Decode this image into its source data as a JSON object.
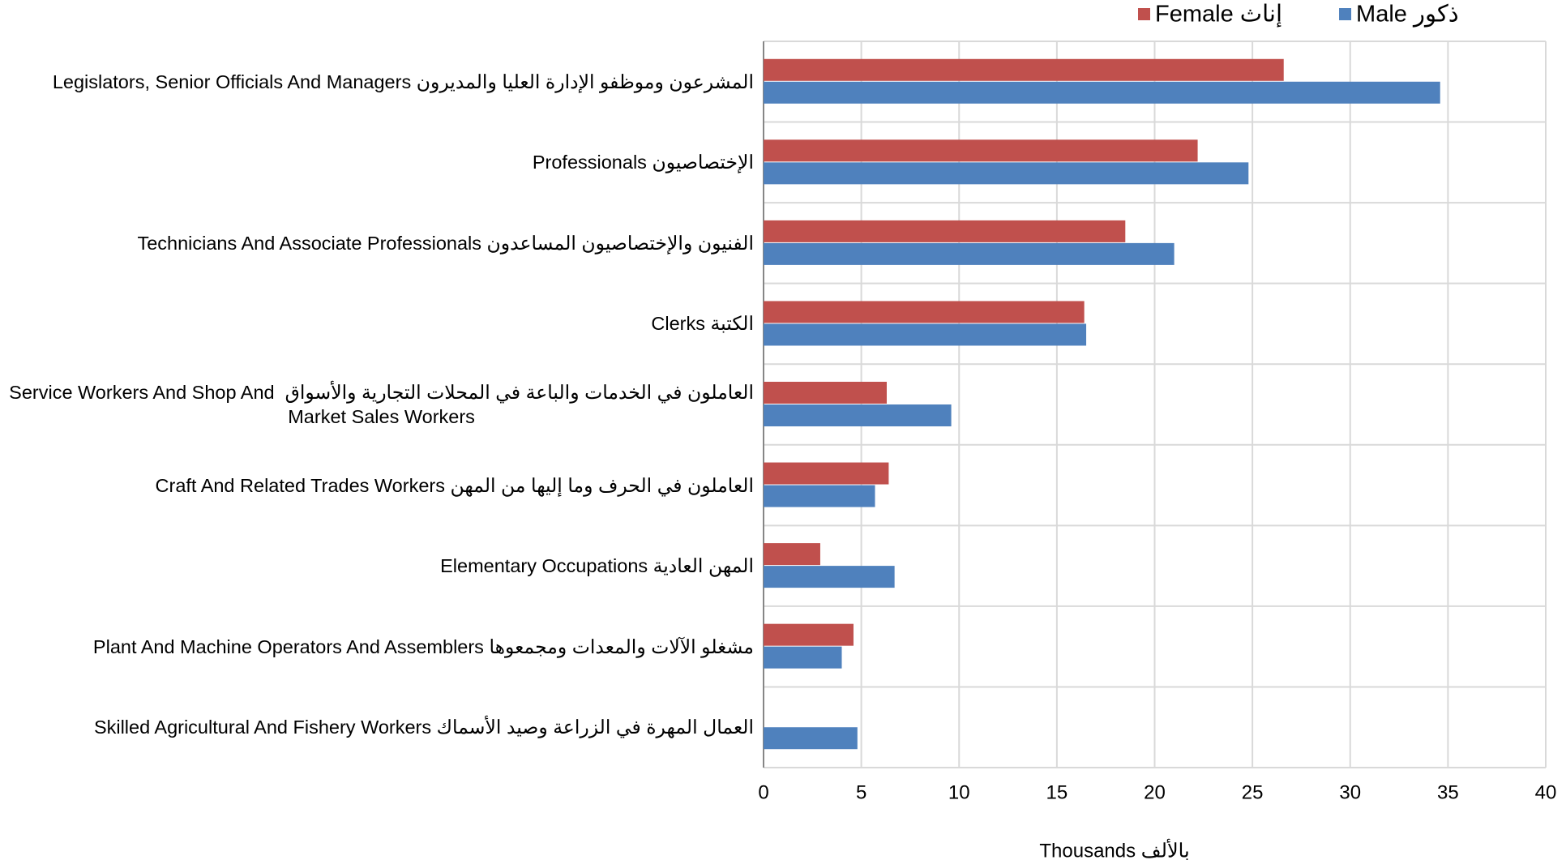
{
  "chart_data": {
    "type": "bar",
    "orientation": "horizontal",
    "categories": [
      "Legislators, Senior Officials And Managers المشرعون وموظفو الإدارة العليا والمديرون",
      "Professionals الإختصاصيون",
      "Technicians And Associate Professionals الفنيون والإختصاصيون المساعدون",
      "Clerks الكتبة",
      "Service Workers And Shop And  العاملون في الخدمات والباعة في المحلات التجارية والأسواق\nMarket Sales Workers",
      "Craft And Related Trades Workers العاملون في الحرف وما إليها من المهن",
      "Elementary Occupations المهن العادية",
      "Plant And Machine Operators And Assemblers مشغلو الآلات والمعدات ومجمعوها",
      "Skilled Agricultural And Fishery Workers العمال المهرة في الزراعة وصيد الأسماك"
    ],
    "series": [
      {
        "name": "Female إناث",
        "color": "#c0504d",
        "values": [
          26.6,
          22.2,
          18.5,
          16.4,
          6.3,
          6.4,
          2.9,
          4.6,
          0
        ]
      },
      {
        "name": "Male ذكور",
        "color": "#4f81bd",
        "values": [
          34.6,
          24.8,
          21.0,
          16.5,
          9.6,
          5.7,
          6.7,
          4.0,
          4.8
        ]
      }
    ],
    "xlabel": "Thousands بالألف",
    "xlim": [
      0,
      40
    ],
    "xticks": [
      0,
      5,
      10,
      15,
      20,
      25,
      30,
      35,
      40
    ],
    "grid": true,
    "legend": "top"
  }
}
